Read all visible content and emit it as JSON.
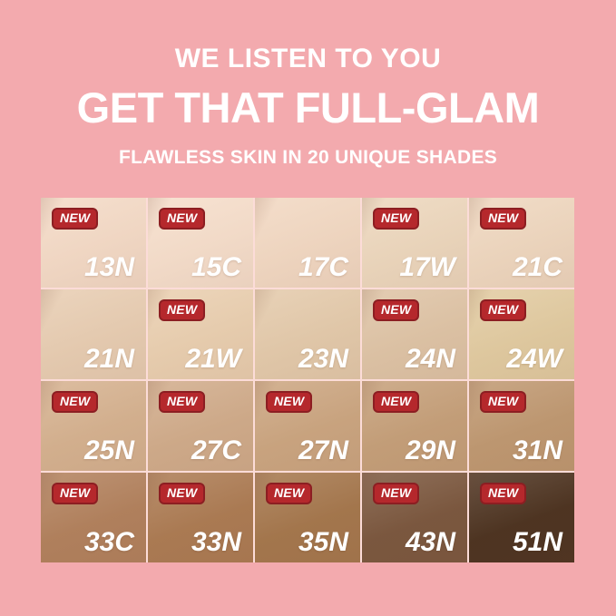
{
  "header": {
    "line1": "WE LISTEN TO YOU",
    "line2": "GET THAT FULL-GLAM",
    "line3": "FLAWLESS SKIN IN 20 UNIQUE SHADES"
  },
  "badge": {
    "label": "NEW",
    "bg": "#B5282C",
    "border": "#8C1E22",
    "text_color": "#FFFFFF"
  },
  "colors": {
    "background": "#F3AAAE",
    "header_text": "#FFFFFF"
  },
  "shades": [
    {
      "label": "13N",
      "color": "#F4DAC6",
      "new": true
    },
    {
      "label": "15C",
      "color": "#F6DECB",
      "new": true
    },
    {
      "label": "17C",
      "color": "#F2D8C2",
      "new": false
    },
    {
      "label": "17W",
      "color": "#EDD7BD",
      "new": true
    },
    {
      "label": "21C",
      "color": "#EFD7BF",
      "new": true
    },
    {
      "label": "21N",
      "color": "#E8CDB2",
      "new": false
    },
    {
      "label": "21W",
      "color": "#EACFB0",
      "new": true
    },
    {
      "label": "23N",
      "color": "#E4CAAB",
      "new": false
    },
    {
      "label": "24N",
      "color": "#DFC4A6",
      "new": true
    },
    {
      "label": "24W",
      "color": "#E2CBA1",
      "new": true
    },
    {
      "label": "25N",
      "color": "#D6B290",
      "new": true
    },
    {
      "label": "27C",
      "color": "#D1AC8B",
      "new": true
    },
    {
      "label": "27N",
      "color": "#CCA681",
      "new": true
    },
    {
      "label": "29N",
      "color": "#C6A07A",
      "new": true
    },
    {
      "label": "31N",
      "color": "#C09972",
      "new": true
    },
    {
      "label": "33C",
      "color": "#B3825E",
      "new": true
    },
    {
      "label": "33N",
      "color": "#AD7C54",
      "new": true
    },
    {
      "label": "35N",
      "color": "#A6784E",
      "new": true
    },
    {
      "label": "43N",
      "color": "#7D5940",
      "new": true
    },
    {
      "label": "51N",
      "color": "#4F3522",
      "new": true
    }
  ]
}
